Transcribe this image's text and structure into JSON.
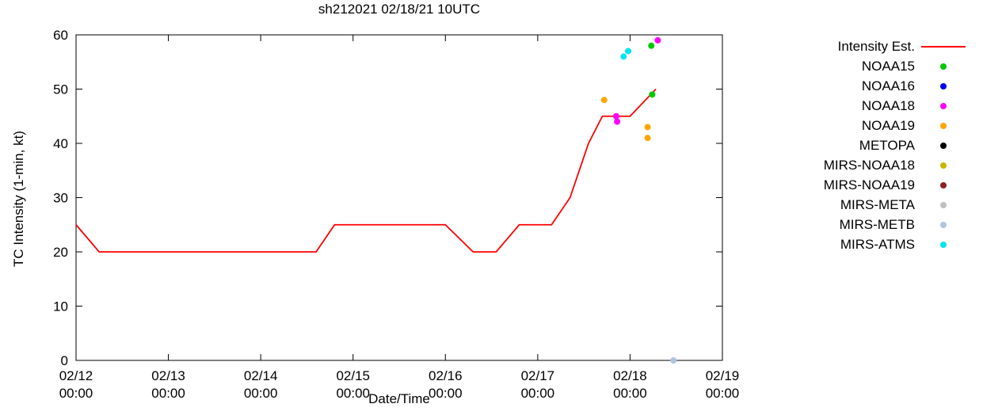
{
  "title": "sh212021 02/18/21 10UTC",
  "axes": {
    "ylabel": "TC Intensity (1-min, kt)",
    "xlabel": "Date/Time"
  },
  "chart_data": {
    "type": "line",
    "title": "sh212021 02/18/21 10UTC",
    "xlabel": "Date/Time",
    "ylabel": "TC Intensity (1-min, kt)",
    "ylim": [
      0,
      60
    ],
    "yticks": [
      0,
      10,
      20,
      30,
      40,
      50,
      60
    ],
    "xlim_days": [
      0,
      7
    ],
    "xticks": [
      {
        "pos": 0,
        "label_date": "02/12",
        "label_time": "00:00"
      },
      {
        "pos": 1,
        "label_date": "02/13",
        "label_time": "00:00"
      },
      {
        "pos": 2,
        "label_date": "02/14",
        "label_time": "00:00"
      },
      {
        "pos": 3,
        "label_date": "02/15",
        "label_time": "00:00"
      },
      {
        "pos": 4,
        "label_date": "02/16",
        "label_time": "00:00"
      },
      {
        "pos": 5,
        "label_date": "02/17",
        "label_time": "00:00"
      },
      {
        "pos": 6,
        "label_date": "02/18",
        "label_time": "00:00"
      },
      {
        "pos": 7,
        "label_date": "02/19",
        "label_time": "00:00"
      }
    ],
    "series": [
      {
        "name": "Intensity Est.",
        "type": "line",
        "color": "#ff0000",
        "points": [
          [
            0,
            25
          ],
          [
            0.25,
            20
          ],
          [
            2.6,
            20
          ],
          [
            2.8,
            25
          ],
          [
            4.0,
            25
          ],
          [
            4.3,
            20
          ],
          [
            4.55,
            20
          ],
          [
            4.8,
            25
          ],
          [
            5.15,
            25
          ],
          [
            5.35,
            30
          ],
          [
            5.55,
            40
          ],
          [
            5.7,
            45
          ],
          [
            6.0,
            45
          ],
          [
            6.28,
            50
          ]
        ]
      },
      {
        "name": "NOAA15",
        "type": "scatter",
        "color": "#00c800",
        "points": [
          [
            6.23,
            58
          ],
          [
            6.24,
            49
          ]
        ]
      },
      {
        "name": "NOAA16",
        "type": "scatter",
        "color": "#0000ee",
        "points": []
      },
      {
        "name": "NOAA18",
        "type": "scatter",
        "color": "#ff00ff",
        "points": [
          [
            5.85,
            45
          ],
          [
            5.86,
            44
          ],
          [
            6.3,
            59
          ]
        ]
      },
      {
        "name": "NOAA19",
        "type": "scatter",
        "color": "#ffa500",
        "points": [
          [
            5.72,
            48
          ],
          [
            6.19,
            43
          ],
          [
            6.19,
            41
          ]
        ]
      },
      {
        "name": "METOPA",
        "type": "scatter",
        "color": "#000000",
        "points": []
      },
      {
        "name": "MIRS-NOAA18",
        "type": "scatter",
        "color": "#c8b400",
        "points": []
      },
      {
        "name": "MIRS-NOAA19",
        "type": "scatter",
        "color": "#8b2323",
        "points": []
      },
      {
        "name": "MIRS-META",
        "type": "scatter",
        "color": "#c0c0c0",
        "points": []
      },
      {
        "name": "MIRS-METB",
        "type": "scatter",
        "color": "#b0c4de",
        "points": [
          [
            6.47,
            0
          ]
        ]
      },
      {
        "name": "MIRS-ATMS",
        "type": "scatter",
        "color": "#00e5ee",
        "points": [
          [
            5.93,
            56
          ],
          [
            5.98,
            57
          ]
        ]
      }
    ]
  },
  "legend": {
    "items": [
      {
        "label": "Intensity Est.",
        "marker": "line",
        "color": "#ff0000"
      },
      {
        "label": "NOAA15",
        "marker": "dot",
        "color": "#00c800"
      },
      {
        "label": "NOAA16",
        "marker": "dot",
        "color": "#0000ee"
      },
      {
        "label": "NOAA18",
        "marker": "dot",
        "color": "#ff00ff"
      },
      {
        "label": "NOAA19",
        "marker": "dot",
        "color": "#ffa500"
      },
      {
        "label": "METOPA",
        "marker": "dot",
        "color": "#000000"
      },
      {
        "label": "MIRS-NOAA18",
        "marker": "dot",
        "color": "#c8b400"
      },
      {
        "label": "MIRS-NOAA19",
        "marker": "dot",
        "color": "#8b2323"
      },
      {
        "label": "MIRS-META",
        "marker": "dot",
        "color": "#c0c0c0"
      },
      {
        "label": "MIRS-METB",
        "marker": "dot",
        "color": "#b0c4de"
      },
      {
        "label": "MIRS-ATMS",
        "marker": "dot",
        "color": "#00e5ee"
      }
    ]
  }
}
